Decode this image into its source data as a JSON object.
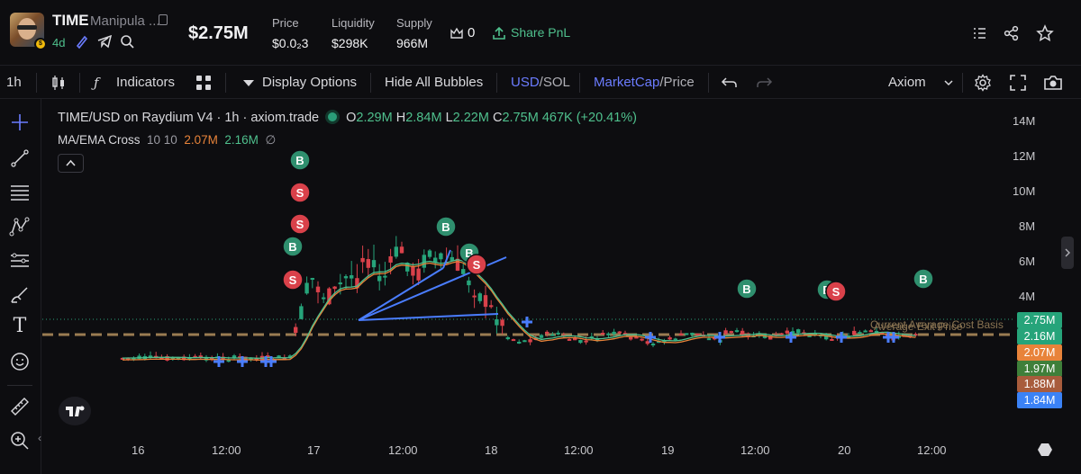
{
  "header": {
    "ticker": "TIME",
    "token_name": "Manipula ...",
    "age": "4d",
    "market_cap": "$2.75M",
    "stats": [
      {
        "label": "Price",
        "value": "$0.0₂3"
      },
      {
        "label": "Liquidity",
        "value": "$298K"
      },
      {
        "label": "Supply",
        "value": "966M"
      }
    ],
    "holders_count": "0",
    "share_pnl_label": "Share PnL"
  },
  "toolbar": {
    "interval": "1h",
    "indicators_label": "Indicators",
    "display_options_label": "Display Options",
    "hide_bubbles_label": "Hide All Bubbles",
    "currency_active": "USD",
    "currency_inactive": "/SOL",
    "metric_active": "MarketCap",
    "metric_inactive": "/Price",
    "layout_label": "Axiom"
  },
  "legend": {
    "symbol_line": "TIME/USD on Raydium V4 · 1h · axiom.trade",
    "o_label": "O",
    "o_value": "2.29M",
    "h_label": "H",
    "h_value": "2.84M",
    "l_label": "L",
    "l_value": "2.22M",
    "c_label": "C",
    "c_value": "2.75M",
    "change": "467K (+20.41%)",
    "indicator_name": "MA/EMA Cross",
    "indicator_params": "10 10",
    "ma_value": "2.07M",
    "ema_value": "2.16M",
    "hidden_icon": "∅"
  },
  "axis": {
    "y_ticks": [
      "14M",
      "12M",
      "10M",
      "8M",
      "6M",
      "4M"
    ],
    "x_ticks": [
      "16",
      "12:00",
      "17",
      "12:00",
      "18",
      "12:00",
      "19",
      "12:00",
      "20",
      "12:00"
    ]
  },
  "price_tags": [
    {
      "label": "2.75M",
      "color": "#26a47a"
    },
    {
      "label": "2.16M",
      "color": "#26a47a"
    },
    {
      "label": "2.07M",
      "color": "#e8833a"
    },
    {
      "label": "1.97M",
      "color": "#3f7f3a"
    },
    {
      "label": "1.88M",
      "color": "#a85c3c"
    },
    {
      "label": "1.84M",
      "color": "#3b82f6"
    }
  ],
  "avg_lines": {
    "line1": "Current Average Cost Basis",
    "line2": "Average Exit Price"
  },
  "bubbles": {
    "buy_letter": "B",
    "sell_letter": "S",
    "buy_color": "#2f8f6e",
    "sell_color": "#d9414a"
  },
  "chart_data": {
    "type": "candlestick",
    "title": "TIME/USD on Raydium V4 · 1h · axiom.trade",
    "ylabel": "",
    "xlabel": "",
    "y_ticks": [
      "14M",
      "12M",
      "10M",
      "8M",
      "6M",
      "4M"
    ],
    "x_ticks": [
      "16",
      "12:00",
      "17",
      "12:00",
      "18",
      "12:00",
      "19",
      "12:00",
      "20",
      "12:00"
    ],
    "ohlc_last": {
      "open": "2.29M",
      "high": "2.84M",
      "low": "2.22M",
      "close": "2.75M"
    },
    "series": [
      {
        "name": "MA/EMA Cross MA",
        "value": "2.07M",
        "color": "#e8833a"
      },
      {
        "name": "MA/EMA Cross EMA",
        "value": "2.16M",
        "color": "#4fc08d"
      }
    ],
    "grid": false,
    "legend_position": "top-left"
  }
}
